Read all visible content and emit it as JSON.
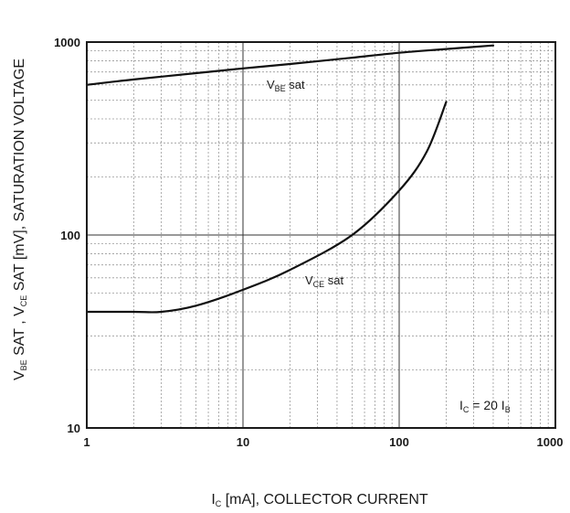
{
  "chart_data": {
    "type": "line",
    "x_scale": "log",
    "y_scale": "log",
    "xlim": [
      1,
      1000
    ],
    "ylim": [
      10,
      1000
    ],
    "x_ticks": [
      {
        "value": 1,
        "label": "1"
      },
      {
        "value": 10,
        "label": "10"
      },
      {
        "value": 100,
        "label": "100"
      },
      {
        "value": 1000,
        "label": "1000"
      }
    ],
    "y_ticks": [
      {
        "value": 10,
        "label": "10"
      },
      {
        "value": 100,
        "label": "100"
      },
      {
        "value": 1000,
        "label": "1000"
      }
    ],
    "grid": true,
    "xlabel": "I_C [mA], COLLECTOR CURRENT",
    "ylabel": "V_BE SAT , V_CE SAT [mV], SATURATION VOLTAGE",
    "annotation": "I_C = 20 I_B",
    "series": [
      {
        "name": "V_BE sat",
        "x": [
          1,
          2,
          5,
          10,
          20,
          50,
          100,
          200,
          400
        ],
        "y": [
          600,
          640,
          690,
          730,
          770,
          830,
          880,
          920,
          960
        ]
      },
      {
        "name": "V_CE sat",
        "x": [
          1,
          2,
          3,
          5,
          10,
          20,
          50,
          100,
          150,
          200
        ],
        "y": [
          40,
          40,
          40,
          43,
          52,
          66,
          100,
          170,
          270,
          490
        ]
      }
    ]
  },
  "labels": {
    "xlabel_main": "I",
    "xlabel_sub": "C",
    "xlabel_rest": " [mA], COLLECTOR CURRENT",
    "ylabel_v1": "V",
    "ylabel_sub1": "BE",
    "ylabel_mid": " SAT , V",
    "ylabel_sub2": "CE",
    "ylabel_rest": " SAT [mV], SATURATION VOLTAGE",
    "vbe_main": "V",
    "vbe_sub": "BE",
    "vbe_rest": " sat",
    "vce_main": "V",
    "vce_sub": "CE",
    "vce_rest": " sat",
    "ann_i1": "I",
    "ann_sub1": "C",
    "ann_mid": " = 20 I",
    "ann_sub2": "B"
  }
}
